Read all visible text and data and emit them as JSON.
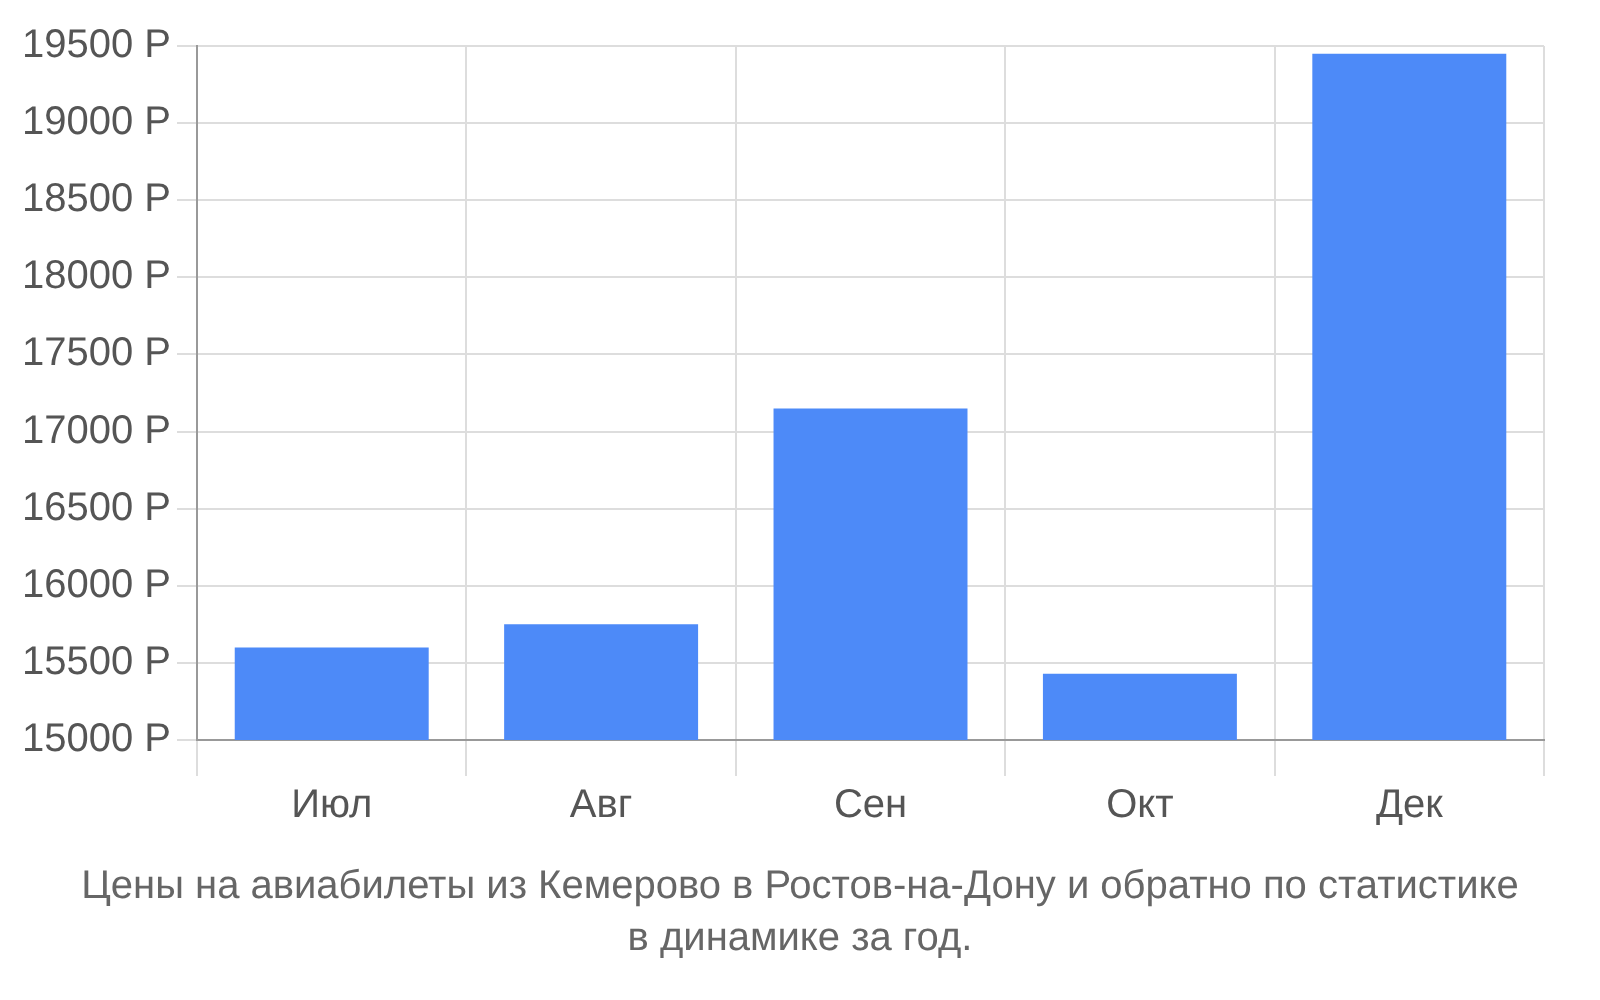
{
  "chart_data": {
    "type": "bar",
    "title": "Цены на авиабилеты из Кемерово в Ростов-на-Дону и обратно по статистике в динамике за год.",
    "categories": [
      "Июл",
      "Авг",
      "Сен",
      "Окт",
      "Дек"
    ],
    "values": [
      15600,
      15750,
      17150,
      15430,
      19450
    ],
    "color": "#4d8af8",
    "ylim": [
      15000,
      19500
    ],
    "yticks": [
      {
        "value": 15000,
        "label": "15000 Р"
      },
      {
        "value": 15500,
        "label": "15500 Р"
      },
      {
        "value": 16000,
        "label": "16000 Р"
      },
      {
        "value": 16500,
        "label": "16500 Р"
      },
      {
        "value": 17000,
        "label": "17000 Р"
      },
      {
        "value": 17500,
        "label": "17500 Р"
      },
      {
        "value": 18000,
        "label": "18000 Р"
      },
      {
        "value": 18500,
        "label": "18500 Р"
      },
      {
        "value": 19000,
        "label": "19000 Р"
      },
      {
        "value": 19500,
        "label": "19500 Р"
      }
    ],
    "grid": true
  }
}
